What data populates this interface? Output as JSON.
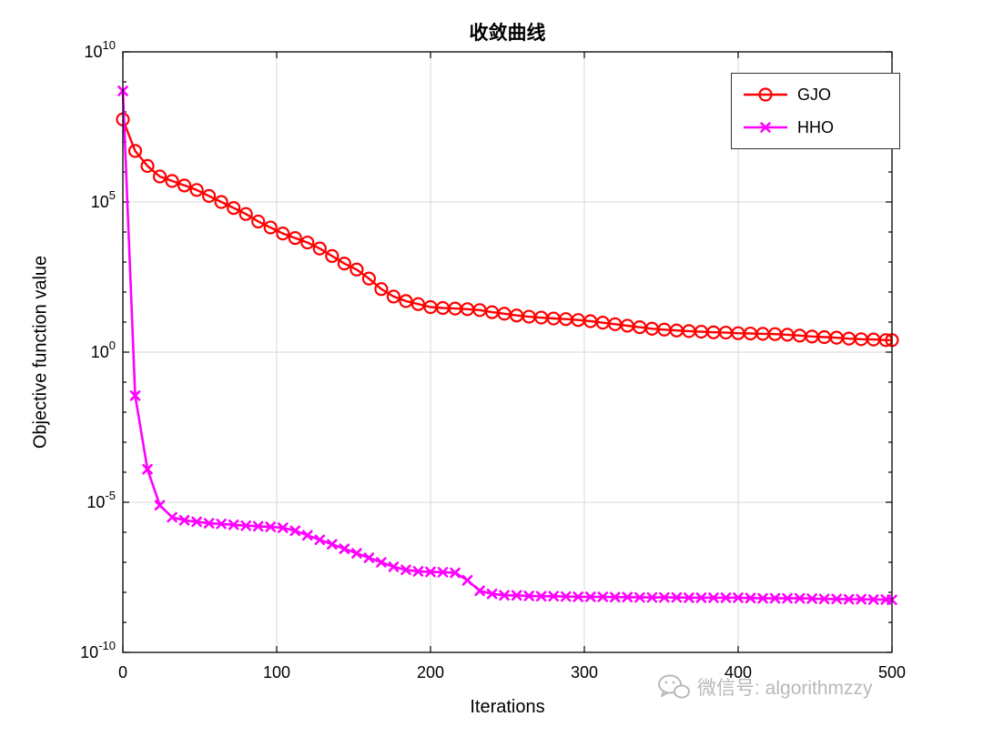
{
  "watermark": {
    "text": "微信号: algorithmzzy",
    "color": "#b9b9b9"
  },
  "colors": {
    "gjo": "#ff0000",
    "hho": "#ff00ff",
    "grid": "#d9d9d9",
    "axis": "#000000",
    "legend_border": "#333333",
    "background": "#ffffff"
  },
  "chart_data": {
    "type": "line",
    "title": "收敛曲线",
    "xlabel": "Iterations",
    "ylabel": "Objective function value",
    "x_scale": "linear",
    "y_scale": "log",
    "xlim": [
      0,
      500
    ],
    "ylim_log10": [
      -10,
      10
    ],
    "x_ticks": [
      0,
      100,
      200,
      300,
      400,
      500
    ],
    "y_ticks_exponents": [
      10,
      5,
      0,
      -5,
      -10
    ],
    "grid": true,
    "legend_position": "top-right",
    "x": [
      0,
      8,
      16,
      24,
      32,
      40,
      48,
      56,
      64,
      72,
      80,
      88,
      96,
      104,
      112,
      120,
      128,
      136,
      144,
      152,
      160,
      168,
      176,
      184,
      192,
      200,
      208,
      216,
      224,
      232,
      240,
      248,
      256,
      264,
      272,
      280,
      288,
      296,
      304,
      312,
      320,
      328,
      336,
      344,
      352,
      360,
      368,
      376,
      384,
      392,
      400,
      408,
      416,
      424,
      432,
      440,
      448,
      456,
      464,
      472,
      480,
      488,
      496,
      500
    ],
    "series": [
      {
        "name": "GJO",
        "color": "#ff0000",
        "marker": "circle",
        "line_width": 2.4,
        "y_log10": [
          7.75,
          6.7,
          6.2,
          5.85,
          5.7,
          5.55,
          5.4,
          5.2,
          5.0,
          4.8,
          4.6,
          4.35,
          4.15,
          3.95,
          3.8,
          3.65,
          3.45,
          3.2,
          2.95,
          2.75,
          2.45,
          2.1,
          1.85,
          1.7,
          1.6,
          1.5,
          1.47,
          1.45,
          1.43,
          1.4,
          1.33,
          1.28,
          1.22,
          1.18,
          1.15,
          1.12,
          1.1,
          1.07,
          1.03,
          0.98,
          0.93,
          0.88,
          0.83,
          0.78,
          0.75,
          0.72,
          0.7,
          0.68,
          0.66,
          0.65,
          0.63,
          0.62,
          0.61,
          0.6,
          0.58,
          0.55,
          0.52,
          0.5,
          0.48,
          0.45,
          0.43,
          0.42,
          0.4,
          0.4
        ]
      },
      {
        "name": "HHO",
        "color": "#ff00ff",
        "marker": "x",
        "line_width": 2.6,
        "y_log10": [
          8.7,
          -1.45,
          -3.9,
          -5.1,
          -5.5,
          -5.6,
          -5.65,
          -5.7,
          -5.72,
          -5.75,
          -5.78,
          -5.8,
          -5.82,
          -5.85,
          -5.95,
          -6.1,
          -6.25,
          -6.4,
          -6.55,
          -6.7,
          -6.85,
          -7.0,
          -7.15,
          -7.25,
          -7.3,
          -7.32,
          -7.33,
          -7.35,
          -7.6,
          -7.95,
          -8.05,
          -8.1,
          -8.1,
          -8.12,
          -8.13,
          -8.13,
          -8.14,
          -8.15,
          -8.15,
          -8.15,
          -8.16,
          -8.16,
          -8.17,
          -8.17,
          -8.17,
          -8.17,
          -8.18,
          -8.18,
          -8.18,
          -8.18,
          -8.18,
          -8.19,
          -8.2,
          -8.2,
          -8.2,
          -8.2,
          -8.21,
          -8.22,
          -8.22,
          -8.23,
          -8.23,
          -8.24,
          -8.24,
          -8.25
        ]
      }
    ]
  }
}
